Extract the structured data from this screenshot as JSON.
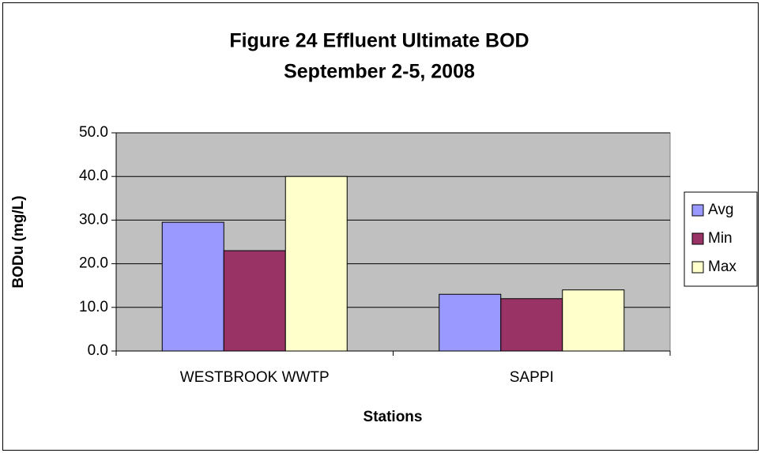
{
  "chart_data": {
    "type": "bar",
    "title": [
      "Figure 24 Effluent Ultimate BOD",
      "September 2-5, 2008"
    ],
    "x_label": "Stations",
    "y_label": "BODu (mg/L)",
    "categories": [
      "WESTBROOK WWTP",
      "SAPPI"
    ],
    "series": [
      {
        "name": "Avg",
        "color": "#9999ff",
        "values": [
          29.5,
          13
        ]
      },
      {
        "name": "Min",
        "color": "#993366",
        "values": [
          23,
          12
        ]
      },
      {
        "name": "Max",
        "color": "#ffffcc",
        "values": [
          40,
          14
        ]
      }
    ],
    "ylim": [
      0,
      50
    ],
    "yticks": [
      {
        "value": 0,
        "label": "0.0"
      },
      {
        "value": 10,
        "label": "10.0"
      },
      {
        "value": 20,
        "label": "20.0"
      },
      {
        "value": 30,
        "label": "30.0"
      },
      {
        "value": 40,
        "label": "40.0"
      },
      {
        "value": 50,
        "label": "50.0"
      }
    ],
    "grid": true,
    "legend": "right"
  }
}
